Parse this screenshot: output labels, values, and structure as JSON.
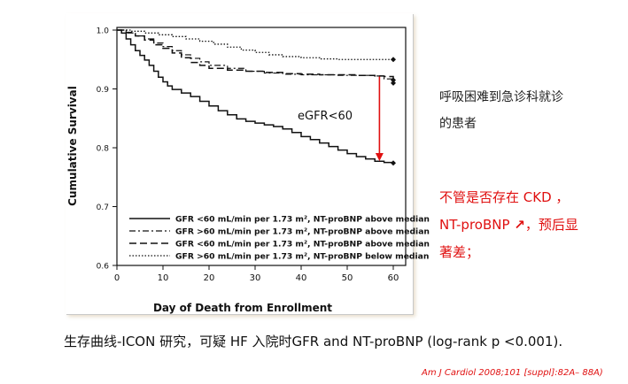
{
  "chart_data": {
    "type": "line",
    "title": "",
    "xlabel": "Day of Death from Enrollment",
    "ylabel": "Cumulative Survival",
    "xlim": [
      0,
      60
    ],
    "ylim": [
      0.6,
      1.0
    ],
    "xticks": [
      "0",
      "10",
      "20",
      "30",
      "40",
      "50",
      "60"
    ],
    "yticks": [
      "0.6",
      "0.7",
      "0.8",
      "0.9",
      "1.0"
    ],
    "grid": false,
    "legend_position": "bottom-right",
    "annotation": "eGFR<60",
    "series": [
      {
        "name": "GFR <60 mL/min per 1.73 m², NT-proBNP above median",
        "style": "solid",
        "x": [
          0,
          1,
          2,
          3,
          4,
          5,
          6,
          7,
          8,
          9,
          10,
          11,
          12,
          14,
          16,
          18,
          20,
          22,
          24,
          26,
          28,
          30,
          32,
          34,
          36,
          38,
          40,
          42,
          44,
          46,
          48,
          50,
          52,
          54,
          56,
          58,
          60
        ],
        "y": [
          1.0,
          0.995,
          0.985,
          0.975,
          0.965,
          0.957,
          0.949,
          0.94,
          0.93,
          0.92,
          0.912,
          0.905,
          0.899,
          0.893,
          0.887,
          0.879,
          0.871,
          0.863,
          0.856,
          0.849,
          0.845,
          0.842,
          0.839,
          0.836,
          0.832,
          0.826,
          0.819,
          0.814,
          0.808,
          0.802,
          0.796,
          0.79,
          0.785,
          0.781,
          0.777,
          0.775,
          0.774
        ]
      },
      {
        "name": "GFR >60 mL/min per 1.73 m², NT-proBNP above median",
        "style": "dashdot",
        "x": [
          0,
          2,
          4,
          6,
          8,
          10,
          12,
          14,
          16,
          18,
          20,
          24,
          28,
          32,
          36,
          40,
          44,
          48,
          52,
          56,
          58,
          60
        ],
        "y": [
          1.0,
          0.995,
          0.99,
          0.985,
          0.978,
          0.972,
          0.965,
          0.958,
          0.952,
          0.946,
          0.94,
          0.935,
          0.93,
          0.927,
          0.925,
          0.924,
          0.924,
          0.923,
          0.923,
          0.922,
          0.917,
          0.91
        ]
      },
      {
        "name": "GFR <60 mL/min per 1.73 m², NT-proBNP above median",
        "style": "dashed",
        "x": [
          0,
          2,
          4,
          6,
          8,
          10,
          12,
          14,
          16,
          18,
          20,
          24,
          28,
          32,
          36,
          40,
          44,
          48,
          52,
          56,
          58,
          60
        ],
        "y": [
          1.0,
          0.996,
          0.99,
          0.983,
          0.975,
          0.969,
          0.961,
          0.953,
          0.945,
          0.94,
          0.935,
          0.932,
          0.93,
          0.928,
          0.926,
          0.925,
          0.924,
          0.924,
          0.923,
          0.922,
          0.921,
          0.915
        ]
      },
      {
        "name": "GFR >60 mL/min per 1.73 m², NT-proBNP below median",
        "style": "dotted",
        "x": [
          0,
          3,
          6,
          9,
          12,
          15,
          18,
          21,
          24,
          27,
          30,
          33,
          36,
          40,
          44,
          48,
          52,
          56,
          60
        ],
        "y": [
          1.0,
          0.998,
          0.995,
          0.992,
          0.989,
          0.985,
          0.981,
          0.976,
          0.971,
          0.966,
          0.962,
          0.958,
          0.955,
          0.953,
          0.951,
          0.95,
          0.95,
          0.95,
          0.95
        ]
      }
    ],
    "arrow": {
      "x": 57,
      "y_from": 0.921,
      "y_to": 0.776,
      "color": "#e01010"
    }
  },
  "notes": {
    "line1": "呼吸困难到急诊科就诊",
    "line2": "的患者",
    "red1": "不管是否存在 CKD ，",
    "red2a": "NT-proBNP ",
    "red2b": "↗",
    "red2c": "，预后显",
    "red3": "著差；"
  },
  "caption": "生存曲线-ICON 研究，可疑 HF 入院时GFR and NT-proBNP (log-rank p <0.001).",
  "citation": "Am J Cardiol 2008;101 [suppl]:82A– 88A)"
}
